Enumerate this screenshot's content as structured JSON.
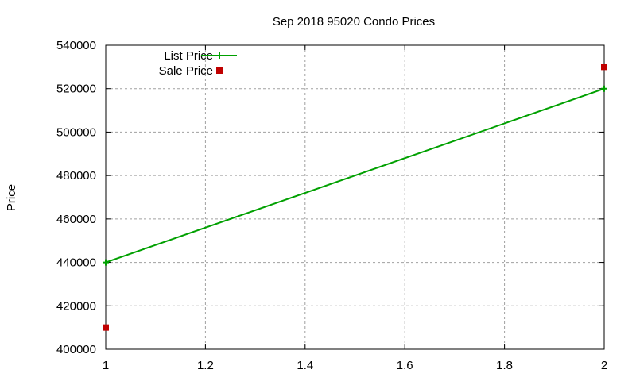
{
  "chart_data": {
    "type": "line",
    "title": "Sep 2018 95020 Condo Prices",
    "xlabel": "",
    "ylabel": "Price",
    "xlim": [
      1,
      2
    ],
    "ylim": [
      400000,
      540000
    ],
    "x_ticks": [
      "1",
      "1.2",
      "1.4",
      "1.6",
      "1.8",
      "2"
    ],
    "y_ticks": [
      "400000",
      "420000",
      "440000",
      "460000",
      "480000",
      "500000",
      "520000",
      "540000"
    ],
    "grid": true,
    "legend_position": "top-left",
    "series": [
      {
        "name": "List Price",
        "style": "line+points",
        "color": "#00a000",
        "x": [
          1,
          2
        ],
        "values": [
          440000,
          520000
        ]
      },
      {
        "name": "Sale Price",
        "style": "points",
        "color": "#c00000",
        "x": [
          1,
          2
        ],
        "values": [
          410000,
          530000
        ]
      }
    ]
  }
}
